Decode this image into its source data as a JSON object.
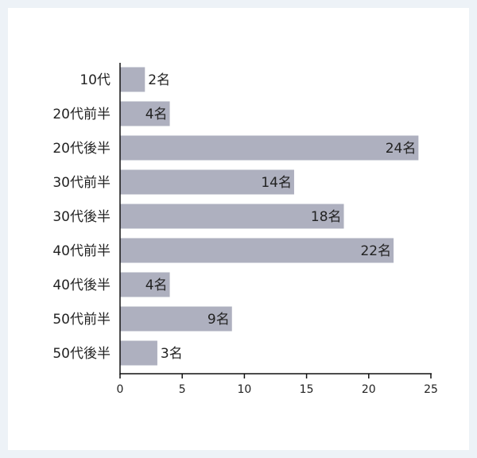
{
  "chart_data": {
    "type": "bar",
    "orientation": "horizontal",
    "categories": [
      "10代",
      "20代前半",
      "20代後半",
      "30代前半",
      "30代後半",
      "40代前半",
      "40代後半",
      "50代前半",
      "50代後半"
    ],
    "values": [
      2,
      4,
      24,
      14,
      18,
      22,
      4,
      9,
      3
    ],
    "value_labels": [
      "2名",
      "4名",
      "24名",
      "14名",
      "18名",
      "22名",
      "4名",
      "9名",
      "3名"
    ],
    "x_ticks": [
      "0",
      "5",
      "10",
      "15",
      "20",
      "25"
    ],
    "xlim": [
      0,
      25
    ],
    "title": "",
    "xlabel": "",
    "ylabel": "",
    "grid": false,
    "legend": "none",
    "bar_color": "#aeb0bf"
  }
}
